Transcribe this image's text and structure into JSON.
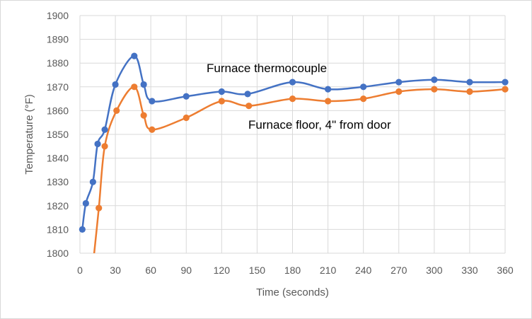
{
  "chart_data": {
    "type": "line",
    "smoothed": true,
    "xlabel": "Time (seconds)",
    "ylabel": "Temperature (°F)",
    "xlim": [
      0,
      360
    ],
    "ylim": [
      1800,
      1900
    ],
    "xticks": [
      0,
      30,
      60,
      90,
      120,
      150,
      180,
      210,
      240,
      270,
      300,
      330,
      360
    ],
    "yticks": [
      1800,
      1810,
      1820,
      1830,
      1840,
      1850,
      1860,
      1870,
      1880,
      1890,
      1900
    ],
    "grid": "vertical and horizontal",
    "colors": {
      "series1": "#4472C4",
      "series2": "#ED7D31",
      "grid": "#d9d9d9",
      "text": "#595959"
    },
    "series": [
      {
        "name": "Furnace thermocouple",
        "points": [
          [
            2,
            1810
          ],
          [
            5,
            1821
          ],
          [
            11,
            1830
          ],
          [
            15,
            1846
          ],
          [
            21,
            1852
          ],
          [
            30,
            1871
          ],
          [
            46,
            1883
          ],
          [
            54,
            1871
          ],
          [
            61,
            1864
          ],
          [
            90,
            1866
          ],
          [
            120,
            1868
          ],
          [
            142,
            1867
          ],
          [
            180,
            1872
          ],
          [
            210,
            1869
          ],
          [
            240,
            1870
          ],
          [
            270,
            1872
          ],
          [
            300,
            1873
          ],
          [
            330,
            1872
          ],
          [
            360,
            1872
          ]
        ]
      },
      {
        "name": "Furnace floor, 4\" from door",
        "points": [
          [
            11,
            1795
          ],
          [
            16,
            1819
          ],
          [
            21,
            1845
          ],
          [
            31,
            1860
          ],
          [
            46,
            1870
          ],
          [
            54,
            1858
          ],
          [
            61,
            1852
          ],
          [
            90,
            1857
          ],
          [
            120,
            1864
          ],
          [
            143,
            1862
          ],
          [
            180,
            1865
          ],
          [
            210,
            1864
          ],
          [
            240,
            1865
          ],
          [
            270,
            1868
          ],
          [
            300,
            1869
          ],
          [
            330,
            1868
          ],
          [
            360,
            1869
          ]
        ]
      }
    ],
    "annotations": [
      {
        "text": "Furnace thermocouple",
        "series": 0
      },
      {
        "text": "Furnace floor, 4\" from door",
        "series": 1
      }
    ]
  }
}
